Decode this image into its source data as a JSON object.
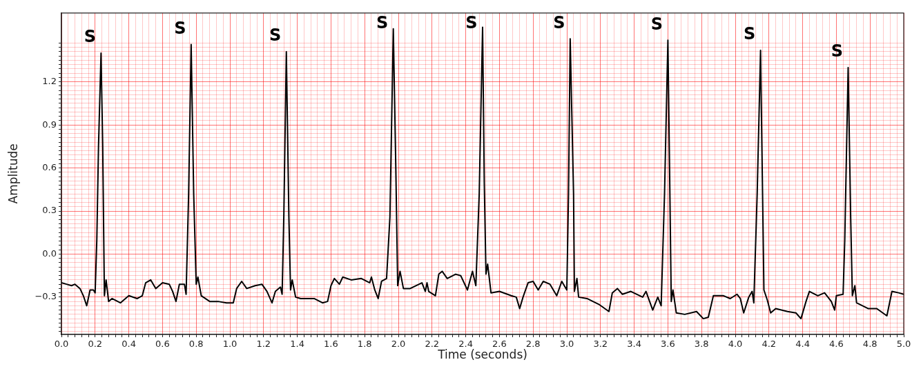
{
  "chart_data": {
    "type": "line",
    "xlabel": "Time (seconds)",
    "ylabel": "Amplitude",
    "grid": true,
    "xlim": [
      0,
      5
    ],
    "ylim": [
      -0.56,
      1.68
    ],
    "xticks": [
      {
        "value": 0,
        "label": "0.0"
      },
      {
        "value": 0.04,
        "label": null
      },
      {
        "value": 0.08,
        "label": null
      },
      {
        "value": 0.12,
        "label": null
      },
      {
        "value": 0.16,
        "label": null
      },
      {
        "value": 0.2,
        "label": "0.2"
      },
      {
        "value": 0.24,
        "label": null
      },
      {
        "value": 0.28,
        "label": null
      },
      {
        "value": 0.32,
        "label": null
      },
      {
        "value": 0.36,
        "label": null
      },
      {
        "value": 0.4,
        "label": "0.4"
      },
      {
        "value": 0.44,
        "label": null
      },
      {
        "value": 0.48,
        "label": null
      },
      {
        "value": 0.52,
        "label": null
      },
      {
        "value": 0.56,
        "label": null
      },
      {
        "value": 0.6,
        "label": "0.6"
      },
      {
        "value": 0.64,
        "label": null
      },
      {
        "value": 0.68,
        "label": null
      },
      {
        "value": 0.72,
        "label": null
      },
      {
        "value": 0.76,
        "label": null
      },
      {
        "value": 0.8,
        "label": "0.8"
      },
      {
        "value": 0.84,
        "label": null
      },
      {
        "value": 0.88,
        "label": null
      },
      {
        "value": 0.92,
        "label": null
      },
      {
        "value": 0.96,
        "label": null
      },
      {
        "value": 1,
        "label": "1.0"
      },
      {
        "value": 1.04,
        "label": null
      },
      {
        "value": 1.08,
        "label": null
      },
      {
        "value": 1.12,
        "label": null
      },
      {
        "value": 1.16,
        "label": null
      },
      {
        "value": 1.2,
        "label": "1.2"
      },
      {
        "value": 1.24,
        "label": null
      },
      {
        "value": 1.28,
        "label": null
      },
      {
        "value": 1.32,
        "label": null
      },
      {
        "value": 1.36,
        "label": null
      },
      {
        "value": 1.4,
        "label": "1.4"
      },
      {
        "value": 1.44,
        "label": null
      },
      {
        "value": 1.48,
        "label": null
      },
      {
        "value": 1.52,
        "label": null
      },
      {
        "value": 1.56,
        "label": null
      },
      {
        "value": 1.6,
        "label": "1.6"
      },
      {
        "value": 1.64,
        "label": null
      },
      {
        "value": 1.68,
        "label": null
      },
      {
        "value": 1.72,
        "label": null
      },
      {
        "value": 1.76,
        "label": null
      },
      {
        "value": 1.8,
        "label": "1.8"
      },
      {
        "value": 1.84,
        "label": null
      },
      {
        "value": 1.88,
        "label": null
      },
      {
        "value": 1.92,
        "label": null
      },
      {
        "value": 1.96,
        "label": null
      },
      {
        "value": 2,
        "label": "2.0"
      },
      {
        "value": 2.04,
        "label": null
      },
      {
        "value": 2.08,
        "label": null
      },
      {
        "value": 2.12,
        "label": null
      },
      {
        "value": 2.16,
        "label": null
      },
      {
        "value": 2.2,
        "label": "2.2"
      },
      {
        "value": 2.24,
        "label": null
      },
      {
        "value": 2.28,
        "label": null
      },
      {
        "value": 2.32,
        "label": null
      },
      {
        "value": 2.36,
        "label": null
      },
      {
        "value": 2.4,
        "label": "2.4"
      },
      {
        "value": 2.44,
        "label": null
      },
      {
        "value": 2.48,
        "label": null
      },
      {
        "value": 2.52,
        "label": null
      },
      {
        "value": 2.56,
        "label": null
      },
      {
        "value": 2.6,
        "label": "2.6"
      },
      {
        "value": 2.64,
        "label": null
      },
      {
        "value": 2.68,
        "label": null
      },
      {
        "value": 2.72,
        "label": null
      },
      {
        "value": 2.76,
        "label": null
      },
      {
        "value": 2.8,
        "label": "2.8"
      },
      {
        "value": 2.84,
        "label": null
      },
      {
        "value": 2.88,
        "label": null
      },
      {
        "value": 2.92,
        "label": null
      },
      {
        "value": 2.96,
        "label": null
      },
      {
        "value": 3,
        "label": "3.0"
      },
      {
        "value": 3.04,
        "label": null
      },
      {
        "value": 3.08,
        "label": null
      },
      {
        "value": 3.12,
        "label": null
      },
      {
        "value": 3.16,
        "label": null
      },
      {
        "value": 3.2,
        "label": "3.2"
      },
      {
        "value": 3.24,
        "label": null
      },
      {
        "value": 3.28,
        "label": null
      },
      {
        "value": 3.32,
        "label": null
      },
      {
        "value": 3.36,
        "label": null
      },
      {
        "value": 3.4,
        "label": "3.4"
      },
      {
        "value": 3.44,
        "label": null
      },
      {
        "value": 3.48,
        "label": null
      },
      {
        "value": 3.52,
        "label": null
      },
      {
        "value": 3.56,
        "label": null
      },
      {
        "value": 3.6,
        "label": "3.6"
      },
      {
        "value": 3.64,
        "label": null
      },
      {
        "value": 3.68,
        "label": null
      },
      {
        "value": 3.72,
        "label": null
      },
      {
        "value": 3.76,
        "label": null
      },
      {
        "value": 3.8,
        "label": "3.8"
      },
      {
        "value": 3.84,
        "label": null
      },
      {
        "value": 3.88,
        "label": null
      },
      {
        "value": 3.92,
        "label": null
      },
      {
        "value": 3.96,
        "label": null
      },
      {
        "value": 4,
        "label": "4.0"
      },
      {
        "value": 4.04,
        "label": null
      },
      {
        "value": 4.08,
        "label": null
      },
      {
        "value": 4.12,
        "label": null
      },
      {
        "value": 4.16,
        "label": null
      },
      {
        "value": 4.2,
        "label": "4.2"
      },
      {
        "value": 4.24,
        "label": null
      },
      {
        "value": 4.28,
        "label": null
      },
      {
        "value": 4.32,
        "label": null
      },
      {
        "value": 4.36,
        "label": null
      },
      {
        "value": 4.4,
        "label": "4.4"
      },
      {
        "value": 4.44,
        "label": null
      },
      {
        "value": 4.48,
        "label": null
      },
      {
        "value": 4.52,
        "label": null
      },
      {
        "value": 4.56,
        "label": null
      },
      {
        "value": 4.6,
        "label": "4.6"
      },
      {
        "value": 4.64,
        "label": null
      },
      {
        "value": 4.68,
        "label": null
      },
      {
        "value": 4.72,
        "label": null
      },
      {
        "value": 4.76,
        "label": null
      },
      {
        "value": 4.8,
        "label": "4.8"
      },
      {
        "value": 4.84,
        "label": null
      },
      {
        "value": 4.88,
        "label": null
      },
      {
        "value": 4.92,
        "label": null
      },
      {
        "value": 4.96,
        "label": null
      },
      {
        "value": 5,
        "label": "5.0"
      }
    ],
    "yticks": [
      {
        "value": -0.54,
        "label": null
      },
      {
        "value": -0.51,
        "label": null
      },
      {
        "value": -0.48,
        "label": null
      },
      {
        "value": -0.45,
        "label": null
      },
      {
        "value": -0.42,
        "label": null
      },
      {
        "value": -0.39,
        "label": null
      },
      {
        "value": -0.36,
        "label": null
      },
      {
        "value": -0.33,
        "label": null
      },
      {
        "value": -0.3,
        "label": "−0.3"
      },
      {
        "value": -0.27,
        "label": null
      },
      {
        "value": -0.24,
        "label": null
      },
      {
        "value": -0.21,
        "label": null
      },
      {
        "value": -0.18,
        "label": null
      },
      {
        "value": -0.15,
        "label": null
      },
      {
        "value": -0.12,
        "label": null
      },
      {
        "value": -0.09,
        "label": null
      },
      {
        "value": -0.06,
        "label": null
      },
      {
        "value": -0.03,
        "label": null
      },
      {
        "value": 0,
        "label": "0.0"
      },
      {
        "value": 0.03,
        "label": null
      },
      {
        "value": 0.06,
        "label": null
      },
      {
        "value": 0.09,
        "label": null
      },
      {
        "value": 0.12,
        "label": null
      },
      {
        "value": 0.15,
        "label": null
      },
      {
        "value": 0.18,
        "label": null
      },
      {
        "value": 0.21,
        "label": null
      },
      {
        "value": 0.24,
        "label": null
      },
      {
        "value": 0.27,
        "label": null
      },
      {
        "value": 0.3,
        "label": "0.3"
      },
      {
        "value": 0.33,
        "label": null
      },
      {
        "value": 0.36,
        "label": null
      },
      {
        "value": 0.39,
        "label": null
      },
      {
        "value": 0.42,
        "label": null
      },
      {
        "value": 0.45,
        "label": null
      },
      {
        "value": 0.48,
        "label": null
      },
      {
        "value": 0.51,
        "label": null
      },
      {
        "value": 0.54,
        "label": null
      },
      {
        "value": 0.57,
        "label": null
      },
      {
        "value": 0.6,
        "label": "0.6"
      },
      {
        "value": 0.63,
        "label": null
      },
      {
        "value": 0.66,
        "label": null
      },
      {
        "value": 0.69,
        "label": null
      },
      {
        "value": 0.72,
        "label": null
      },
      {
        "value": 0.75,
        "label": null
      },
      {
        "value": 0.78,
        "label": null
      },
      {
        "value": 0.81,
        "label": null
      },
      {
        "value": 0.84,
        "label": null
      },
      {
        "value": 0.87,
        "label": null
      },
      {
        "value": 0.9,
        "label": "0.9"
      },
      {
        "value": 0.93,
        "label": null
      },
      {
        "value": 0.96,
        "label": null
      },
      {
        "value": 0.99,
        "label": null
      },
      {
        "value": 1.02,
        "label": null
      },
      {
        "value": 1.05,
        "label": null
      },
      {
        "value": 1.08,
        "label": null
      },
      {
        "value": 1.11,
        "label": null
      },
      {
        "value": 1.14,
        "label": null
      },
      {
        "value": 1.17,
        "label": null
      },
      {
        "value": 1.2,
        "label": "1.2"
      },
      {
        "value": 1.23,
        "label": null
      },
      {
        "value": 1.26,
        "label": null
      },
      {
        "value": 1.29,
        "label": null
      },
      {
        "value": 1.32,
        "label": null
      },
      {
        "value": 1.35,
        "label": null
      },
      {
        "value": 1.38,
        "label": null
      },
      {
        "value": 1.41,
        "label": null
      },
      {
        "value": 1.44,
        "label": null
      },
      {
        "value": 1.47,
        "label": null
      }
    ],
    "annotations": [
      {
        "text": "S",
        "x": 0.235,
        "y": 1.4
      },
      {
        "text": "S",
        "x": 0.77,
        "y": 1.46
      },
      {
        "text": "S",
        "x": 1.335,
        "y": 1.41
      },
      {
        "text": "S",
        "x": 1.97,
        "y": 1.57
      },
      {
        "text": "S",
        "x": 2.5,
        "y": 1.58
      },
      {
        "text": "S",
        "x": 3.02,
        "y": 1.5
      },
      {
        "text": "S",
        "x": 3.6,
        "y": 1.49
      },
      {
        "text": "S",
        "x": 4.15,
        "y": 1.42
      },
      {
        "text": "S",
        "x": 4.67,
        "y": 1.3
      }
    ],
    "series": [
      {
        "color": "#000000",
        "x": [
          0,
          0.03,
          0.06,
          0.08,
          0.11,
          0.13,
          0.15,
          0.17,
          0.19,
          0.2,
          0.21,
          0.22,
          0.235,
          0.245,
          0.255,
          0.265,
          0.28,
          0.3,
          0.35,
          0.4,
          0.45,
          0.48,
          0.5,
          0.53,
          0.56,
          0.6,
          0.64,
          0.66,
          0.68,
          0.7,
          0.73,
          0.74,
          0.755,
          0.77,
          0.785,
          0.8,
          0.81,
          0.83,
          0.88,
          0.93,
          0.98,
          1.02,
          1.04,
          1.07,
          1.1,
          1.15,
          1.19,
          1.22,
          1.25,
          1.27,
          1.3,
          1.31,
          1.32,
          1.335,
          1.35,
          1.36,
          1.37,
          1.39,
          1.42,
          1.44,
          1.5,
          1.55,
          1.58,
          1.6,
          1.62,
          1.65,
          1.67,
          1.72,
          1.78,
          1.83,
          1.84,
          1.86,
          1.88,
          1.9,
          1.93,
          1.95,
          1.97,
          1.985,
          1.996,
          2.01,
          2.03,
          2.07,
          2.14,
          2.16,
          2.17,
          2.18,
          2.22,
          2.24,
          2.26,
          2.29,
          2.34,
          2.37,
          2.41,
          2.44,
          2.46,
          2.48,
          2.5,
          2.51,
          2.52,
          2.53,
          2.55,
          2.6,
          2.67,
          2.7,
          2.72,
          2.74,
          2.77,
          2.8,
          2.83,
          2.86,
          2.9,
          2.94,
          2.97,
          3.0,
          3.01,
          3.02,
          3.04,
          3.045,
          3.06,
          3.07,
          3.12,
          3.19,
          3.25,
          3.27,
          3.3,
          3.33,
          3.38,
          3.45,
          3.47,
          3.51,
          3.54,
          3.56,
          3.58,
          3.6,
          3.61,
          3.62,
          3.63,
          3.65,
          3.7,
          3.77,
          3.81,
          3.84,
          3.87,
          3.93,
          3.97,
          4.01,
          4.03,
          4.05,
          4.08,
          4.1,
          4.11,
          4.13,
          4.15,
          4.17,
          4.19,
          4.21,
          4.24,
          4.31,
          4.36,
          4.39,
          4.42,
          4.44,
          4.49,
          4.53,
          4.57,
          4.59,
          4.6,
          4.64,
          4.65,
          4.67,
          4.685,
          4.695,
          4.71,
          4.72,
          4.79,
          4.84,
          4.9,
          4.93,
          4.97,
          5.0
        ],
        "values": [
          -0.2,
          -0.21,
          -0.22,
          -0.21,
          -0.24,
          -0.29,
          -0.36,
          -0.25,
          -0.25,
          -0.27,
          0.1,
          0.75,
          1.4,
          0.75,
          -0.29,
          -0.18,
          -0.33,
          -0.31,
          -0.34,
          -0.29,
          -0.31,
          -0.29,
          -0.2,
          -0.18,
          -0.24,
          -0.2,
          -0.21,
          -0.26,
          -0.33,
          -0.21,
          -0.21,
          -0.28,
          0.42,
          1.46,
          0.42,
          -0.21,
          -0.16,
          -0.29,
          -0.33,
          -0.33,
          -0.34,
          -0.34,
          -0.24,
          -0.19,
          -0.24,
          -0.22,
          -0.21,
          -0.26,
          -0.34,
          -0.26,
          -0.23,
          -0.28,
          0.26,
          1.41,
          0.26,
          -0.25,
          -0.18,
          -0.3,
          -0.31,
          -0.31,
          -0.31,
          -0.34,
          -0.33,
          -0.22,
          -0.17,
          -0.21,
          -0.16,
          -0.18,
          -0.17,
          -0.2,
          -0.16,
          -0.25,
          -0.31,
          -0.19,
          -0.17,
          0.26,
          1.57,
          0.59,
          -0.22,
          -0.12,
          -0.24,
          -0.24,
          -0.2,
          -0.26,
          -0.2,
          -0.26,
          -0.29,
          -0.14,
          -0.12,
          -0.17,
          -0.14,
          -0.15,
          -0.25,
          -0.12,
          -0.22,
          0.42,
          1.58,
          0.5,
          -0.14,
          -0.07,
          -0.27,
          -0.26,
          -0.29,
          -0.3,
          -0.38,
          -0.3,
          -0.2,
          -0.19,
          -0.25,
          -0.19,
          -0.21,
          -0.29,
          -0.19,
          -0.25,
          0.42,
          1.5,
          0.42,
          -0.26,
          -0.17,
          -0.3,
          -0.31,
          -0.35,
          -0.4,
          -0.27,
          -0.24,
          -0.28,
          -0.26,
          -0.3,
          -0.26,
          -0.39,
          -0.3,
          -0.36,
          0.42,
          1.49,
          0.59,
          -0.33,
          -0.25,
          -0.41,
          -0.42,
          -0.4,
          -0.45,
          -0.44,
          -0.29,
          -0.29,
          -0.31,
          -0.28,
          -0.31,
          -0.41,
          -0.3,
          -0.26,
          -0.34,
          0.42,
          1.42,
          -0.25,
          -0.32,
          -0.41,
          -0.38,
          -0.4,
          -0.41,
          -0.45,
          -0.33,
          -0.26,
          -0.29,
          -0.27,
          -0.33,
          -0.39,
          -0.29,
          -0.28,
          0.1,
          1.3,
          0.26,
          -0.29,
          -0.22,
          -0.34,
          -0.38,
          -0.38,
          -0.43,
          -0.26,
          -0.27,
          -0.28
        ]
      }
    ]
  }
}
